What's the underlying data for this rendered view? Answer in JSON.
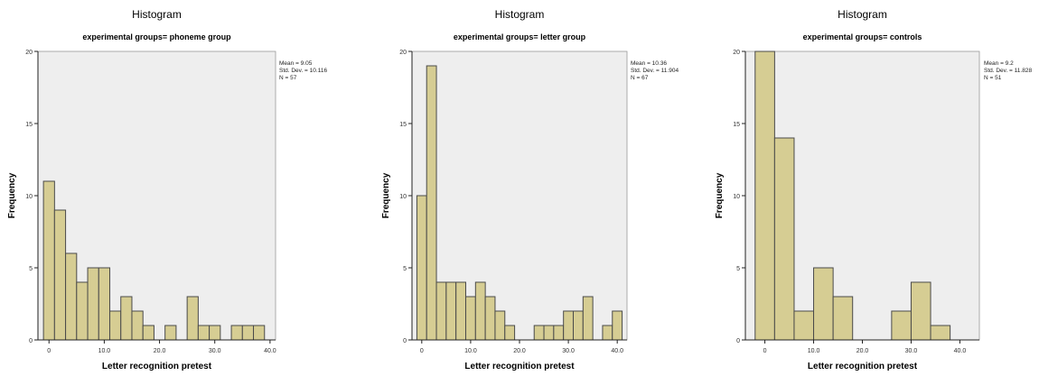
{
  "chart_data": [
    {
      "type": "bar",
      "title": "Histogram",
      "subtitle": "experimental groups= phoneme group",
      "xlabel": "Letter recognition pretest",
      "ylabel": "Frequency",
      "stats": [
        "Mean = 9.05",
        "Std. Dev. = 10.116",
        "N = 57"
      ],
      "xlim": [
        -2,
        41
      ],
      "ylim": [
        0,
        20
      ],
      "xticks": [
        0,
        10,
        20,
        30,
        40
      ],
      "xtick_labels": [
        "0",
        "10.0",
        "20.0",
        "30.0",
        "40.0"
      ],
      "yticks": [
        0,
        5,
        10,
        15,
        20
      ],
      "ytick_labels": [
        "0",
        "5",
        "10",
        "15",
        "20"
      ],
      "bin_width": 2,
      "bin_starts": [
        -1,
        1,
        3,
        5,
        7,
        9,
        11,
        13,
        15,
        17,
        19,
        21,
        23,
        25,
        27,
        29,
        31,
        33,
        35,
        37
      ],
      "values": [
        11,
        9,
        6,
        4,
        5,
        5,
        2,
        3,
        2,
        1,
        0,
        1,
        0,
        3,
        1,
        1,
        0,
        1,
        1,
        1
      ],
      "bar_color": "#d6cd93",
      "plot_bg": "#eeeeee"
    },
    {
      "type": "bar",
      "title": "Histogram",
      "subtitle": "experimental groups= letter group",
      "xlabel": "Letter recognition pretest",
      "ylabel": "Frequency",
      "stats": [
        "Mean = 10.36",
        "Std. Dev. = 11.904",
        "N = 67"
      ],
      "xlim": [
        -2,
        42
      ],
      "ylim": [
        0,
        20
      ],
      "xticks": [
        0,
        10,
        20,
        30,
        40
      ],
      "xtick_labels": [
        "0",
        "10.0",
        "20.0",
        "30.0",
        "40.0"
      ],
      "yticks": [
        0,
        5,
        10,
        15,
        20
      ],
      "ytick_labels": [
        "0",
        "5",
        "10",
        "15",
        "20"
      ],
      "bin_width": 2,
      "bin_starts": [
        -1,
        1,
        3,
        5,
        7,
        9,
        11,
        13,
        15,
        17,
        19,
        21,
        23,
        25,
        27,
        29,
        31,
        33,
        35,
        37,
        39
      ],
      "values": [
        10,
        19,
        4,
        4,
        4,
        3,
        4,
        3,
        2,
        1,
        0,
        0,
        1,
        1,
        1,
        2,
        2,
        3,
        0,
        1,
        2
      ],
      "bar_color": "#d6cd93",
      "plot_bg": "#eeeeee"
    },
    {
      "type": "bar",
      "title": "Histogram",
      "subtitle": "experimental groups= controls",
      "xlabel": "Letter recognition pretest",
      "ylabel": "Frequency",
      "stats": [
        "Mean = 9.2",
        "Std. Dev. = 11.828",
        "N = 51"
      ],
      "xlim": [
        -4,
        44
      ],
      "ylim": [
        0,
        20
      ],
      "xticks": [
        0,
        10,
        20,
        30,
        40
      ],
      "xtick_labels": [
        "0",
        "10.0",
        "20.0",
        "30.0",
        "40.0"
      ],
      "yticks": [
        0,
        5,
        10,
        15,
        20
      ],
      "ytick_labels": [
        "0",
        "5",
        "10",
        "15",
        "20"
      ],
      "bin_width": 4,
      "bin_starts": [
        -2,
        2,
        6,
        10,
        14,
        18,
        22,
        26,
        30,
        34,
        38
      ],
      "values": [
        20,
        14,
        2,
        5,
        3,
        0,
        0,
        2,
        4,
        1,
        0
      ],
      "bar_color": "#d6cd93",
      "plot_bg": "#eeeeee"
    }
  ]
}
